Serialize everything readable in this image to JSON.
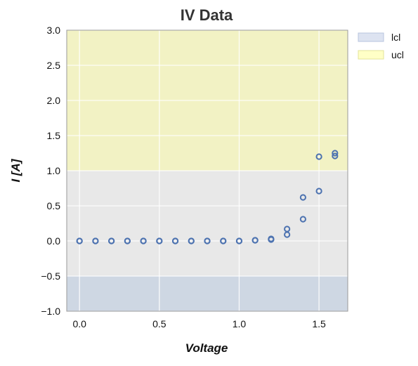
{
  "chart_data": {
    "type": "scatter",
    "title": "IV Data",
    "xlabel": "Voltage",
    "ylabel": "I [A]",
    "xlim": [
      -0.08,
      1.68
    ],
    "ylim": [
      -1.0,
      3.0
    ],
    "x_ticks": [
      0.0,
      0.5,
      1.0,
      1.5
    ],
    "x_tick_labels": [
      "0.0",
      "0.5",
      "1.0",
      "1.5"
    ],
    "y_ticks": [
      -1.0,
      -0.5,
      0.0,
      0.5,
      1.0,
      1.5,
      2.0,
      2.5,
      3.0
    ],
    "y_tick_labels": [
      "−1.0",
      "−0.5",
      "0.0",
      "0.5",
      "1.0",
      "1.5",
      "2.0",
      "2.5",
      "3.0"
    ],
    "grid": true,
    "legend_position": "outside top-right",
    "bands": [
      {
        "name": "lcl",
        "y_from": -1.0,
        "y_to": -0.5,
        "color": "#b0c4de",
        "opacity": 0.45
      },
      {
        "name": "ucl",
        "y_from": 1.0,
        "y_to": 3.0,
        "color": "#ffff99",
        "opacity": 0.45
      }
    ],
    "legend": [
      {
        "label": "lcl",
        "color": "#dde3f1",
        "border": "#b8c4de"
      },
      {
        "label": "ucl",
        "color": "#ffffc6",
        "border": "#e3e39a"
      }
    ],
    "series": [
      {
        "marker": "open-circle",
        "color": "#4c72b0",
        "points": [
          {
            "x": 0.0,
            "y": 0.0
          },
          {
            "x": 0.0,
            "y": 0.0
          },
          {
            "x": 0.1,
            "y": 0.0
          },
          {
            "x": 0.1,
            "y": 0.0
          },
          {
            "x": 0.2,
            "y": 0.0
          },
          {
            "x": 0.2,
            "y": 0.0
          },
          {
            "x": 0.3,
            "y": 0.0
          },
          {
            "x": 0.3,
            "y": 0.0
          },
          {
            "x": 0.4,
            "y": 0.0
          },
          {
            "x": 0.4,
            "y": 0.0
          },
          {
            "x": 0.5,
            "y": 0.0
          },
          {
            "x": 0.5,
            "y": 0.0
          },
          {
            "x": 0.6,
            "y": 0.0
          },
          {
            "x": 0.6,
            "y": 0.0
          },
          {
            "x": 0.7,
            "y": 0.0
          },
          {
            "x": 0.7,
            "y": 0.0
          },
          {
            "x": 0.8,
            "y": 0.0
          },
          {
            "x": 0.8,
            "y": 0.0
          },
          {
            "x": 0.9,
            "y": 0.0
          },
          {
            "x": 0.9,
            "y": 0.0
          },
          {
            "x": 1.0,
            "y": 0.0
          },
          {
            "x": 1.0,
            "y": 0.0
          },
          {
            "x": 1.1,
            "y": 0.01
          },
          {
            "x": 1.1,
            "y": 0.01
          },
          {
            "x": 1.2,
            "y": 0.02
          },
          {
            "x": 1.2,
            "y": 0.03
          },
          {
            "x": 1.3,
            "y": 0.09
          },
          {
            "x": 1.3,
            "y": 0.17
          },
          {
            "x": 1.4,
            "y": 0.31
          },
          {
            "x": 1.4,
            "y": 0.62
          },
          {
            "x": 1.5,
            "y": 0.71
          },
          {
            "x": 1.5,
            "y": 1.2
          },
          {
            "x": 1.6,
            "y": 1.21
          },
          {
            "x": 1.6,
            "y": 1.25
          }
        ]
      }
    ]
  }
}
